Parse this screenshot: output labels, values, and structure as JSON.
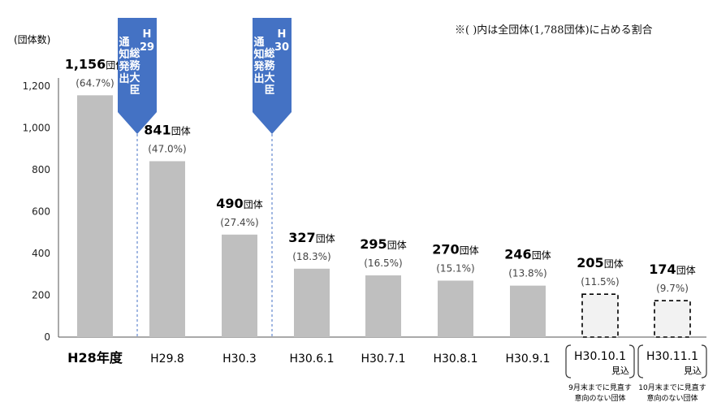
{
  "note": "※(  )内は全団体(1,788団体)に占める割合",
  "chart_data": {
    "type": "bar",
    "ylabel": "(団体数)",
    "ylim": [
      0,
      1200
    ],
    "yticks": [
      "0",
      "200",
      "400",
      "600",
      "800",
      "1,000",
      "1,200"
    ],
    "ytick_values": [
      0,
      200,
      400,
      600,
      800,
      1000,
      1200
    ],
    "grid": false,
    "categories": [
      "H28年度",
      "H29.8",
      "H30.3",
      "H30.6.1",
      "H30.7.1",
      "H30.8.1",
      "H30.9.1",
      "H30.10.1",
      "H30.11.1"
    ],
    "values": [
      1156,
      841,
      490,
      327,
      295,
      270,
      246,
      205,
      174
    ],
    "value_labels": [
      "1,156",
      "841",
      "490",
      "327",
      "295",
      "270",
      "246",
      "205",
      "174"
    ],
    "unit": "団体",
    "percent_labels": [
      "(64.7%)",
      "(47.0%)",
      "(27.4%)",
      "(18.3%)",
      "(16.5%)",
      "(15.1%)",
      "(13.8%)",
      "(11.5%)",
      "(9.7%)"
    ],
    "projected": [
      false,
      false,
      false,
      false,
      false,
      false,
      false,
      true,
      true
    ],
    "projected_tag": "見込",
    "footnotes": [
      "9月末までに見直す\n意向のない団体",
      "10月末までに見直す\n意向のない団体"
    ],
    "markers": [
      {
        "text": "H\n29\n総務大臣\n通知発出",
        "after": "H28年度"
      },
      {
        "text": "H\n30\n総務大臣\n通知発出",
        "after": "H30.3"
      }
    ],
    "colors": {
      "bar": "#bfbfbf",
      "projected_fill": "#f2f2f2",
      "marker": "#4472c4",
      "dashed_line": "#4472c4"
    }
  }
}
